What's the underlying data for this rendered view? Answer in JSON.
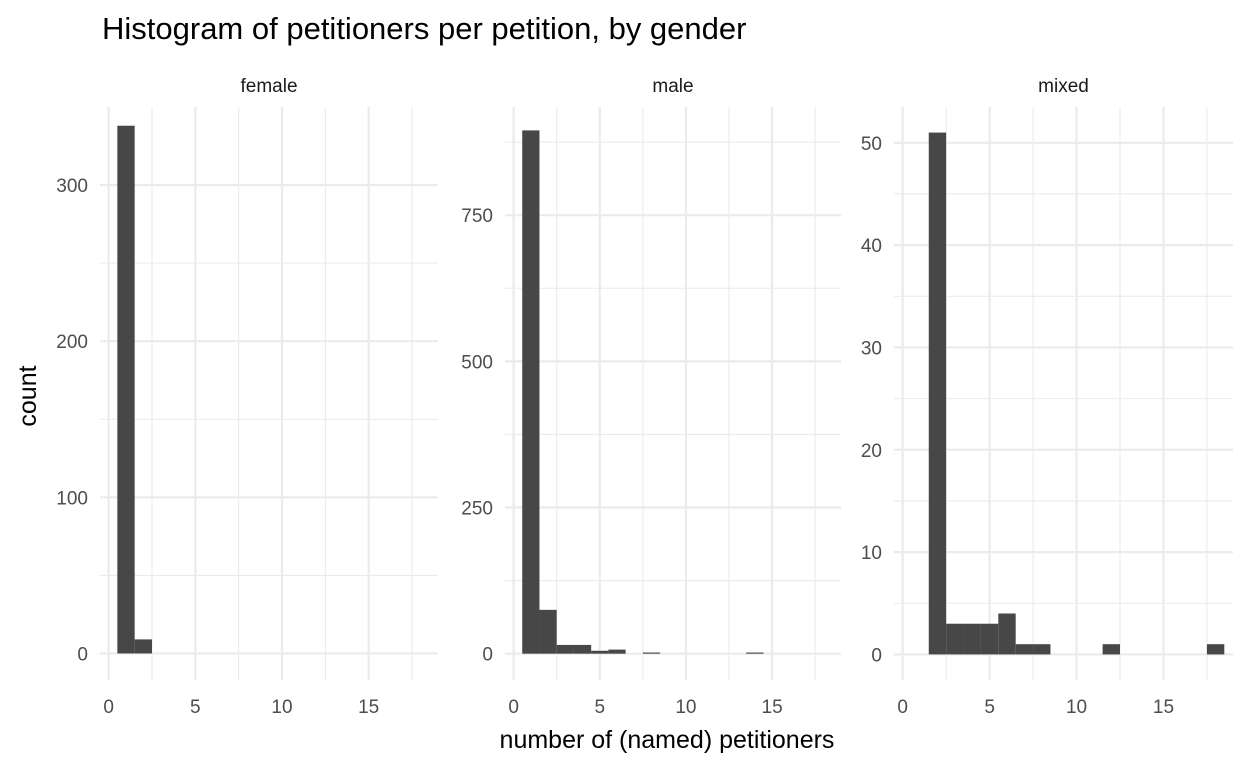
{
  "chart_data": {
    "type": "bar",
    "subtype": "faceted-histogram",
    "title": "Histogram of petitioners per petition, by gender",
    "xlabel": "number of (named) petitioners",
    "ylabel": "count",
    "bin_width": 1,
    "xlim": [
      -0.5,
      19
    ],
    "x_ticks": [
      0,
      5,
      10,
      15
    ],
    "x_tick_labels": [
      "0",
      "5",
      "10",
      "15"
    ],
    "grid": true,
    "legend": "none",
    "bar_color": "#474747",
    "facets": [
      {
        "name": "female",
        "ylim": [
          -17,
          350
        ],
        "y_ticks": [
          0,
          100,
          200,
          300
        ],
        "y_tick_labels": [
          "0",
          "100",
          "200",
          "300"
        ],
        "bins": [
          {
            "x": 1,
            "count": 338
          },
          {
            "x": 2,
            "count": 9
          }
        ]
      },
      {
        "name": "male",
        "ylim": [
          -45,
          935
        ],
        "y_ticks": [
          0,
          250,
          500,
          750
        ],
        "y_tick_labels": [
          "0",
          "250",
          "500",
          "750"
        ],
        "bins": [
          {
            "x": 1,
            "count": 895
          },
          {
            "x": 2,
            "count": 75
          },
          {
            "x": 3,
            "count": 15
          },
          {
            "x": 4,
            "count": 15
          },
          {
            "x": 5,
            "count": 5
          },
          {
            "x": 6,
            "count": 7
          },
          {
            "x": 8,
            "count": 2
          },
          {
            "x": 14,
            "count": 2
          }
        ]
      },
      {
        "name": "mixed",
        "ylim": [
          -2.5,
          53.5
        ],
        "y_ticks": [
          0,
          10,
          20,
          30,
          40,
          50
        ],
        "y_tick_labels": [
          "0",
          "10",
          "20",
          "30",
          "40",
          "50"
        ],
        "bins": [
          {
            "x": 2,
            "count": 51
          },
          {
            "x": 3,
            "count": 3
          },
          {
            "x": 4,
            "count": 3
          },
          {
            "x": 5,
            "count": 3
          },
          {
            "x": 6,
            "count": 4
          },
          {
            "x": 7,
            "count": 1
          },
          {
            "x": 8,
            "count": 1
          },
          {
            "x": 12,
            "count": 1
          },
          {
            "x": 18,
            "count": 1
          }
        ]
      }
    ]
  }
}
